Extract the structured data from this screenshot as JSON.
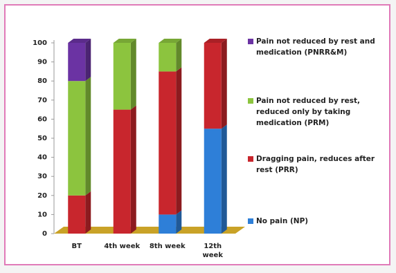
{
  "chart_data": {
    "type": "bar3d_stacked",
    "categories": [
      "BT",
      "4th week",
      "8th week",
      "12th week"
    ],
    "series": [
      {
        "name": "No pain (NP)",
        "color": "#2e7fd8",
        "values": [
          0,
          0,
          10,
          55
        ]
      },
      {
        "name": "Dragging pain, reduces after rest (PRR)",
        "color": "#c8262d",
        "values": [
          20,
          65,
          75,
          45
        ]
      },
      {
        "name": "Pain not reduced by rest, reduced only by taking medication (PRM)",
        "color": "#8cc43e",
        "values": [
          60,
          35,
          15,
          0
        ]
      },
      {
        "name": "Pain not reduced by rest and medication (PNRR&M)",
        "color": "#6b33a3",
        "values": [
          20,
          0,
          0,
          0
        ]
      }
    ],
    "ylim": [
      0,
      100
    ],
    "yticks": [
      0,
      10,
      20,
      30,
      40,
      50,
      60,
      70,
      80,
      90,
      100
    ]
  }
}
